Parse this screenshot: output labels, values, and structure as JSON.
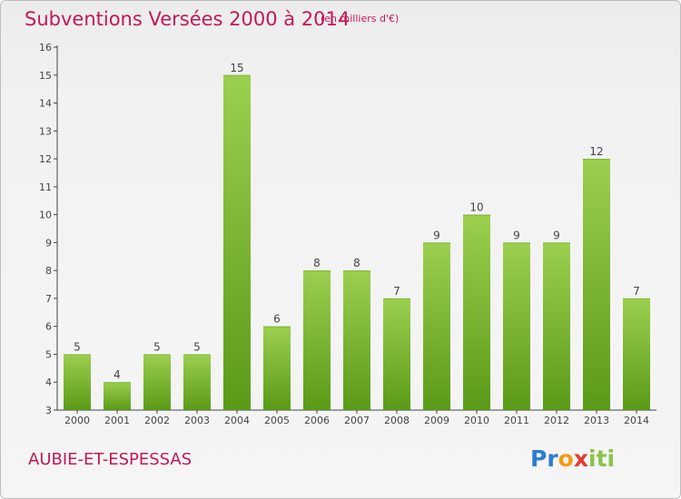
{
  "header": {
    "title": "Subventions Versées 2000 à 2014",
    "unit": "(en milliers d'€)"
  },
  "footer": {
    "commune": "AUBIE-ET-ESPESSAS",
    "logo_letters": [
      "P",
      "r",
      "o",
      "x",
      "i",
      "t",
      "i"
    ],
    "logo_colors": [
      "#2e7dd1",
      "#2e7dd1",
      "#f39c12",
      "#e53935",
      "#8bc34a",
      "#8bc34a",
      "#8bc34a"
    ]
  },
  "colors": {
    "title": "#c2185b",
    "bar_light": "#9ccf4f",
    "bar_dark": "#5a9a17",
    "axis": "#444444"
  },
  "chart_data": {
    "type": "bar",
    "categories": [
      "2000",
      "2001",
      "2002",
      "2003",
      "2004",
      "2005",
      "2006",
      "2007",
      "2008",
      "2009",
      "2010",
      "2011",
      "2012",
      "2013",
      "2014"
    ],
    "values": [
      5,
      4,
      5,
      5,
      15,
      6,
      8,
      8,
      7,
      9,
      10,
      9,
      9,
      12,
      7
    ],
    "title": "Subventions Versées 2000 à 2014",
    "subtitle": "(en milliers d'€)",
    "xlabel": "",
    "ylabel": "",
    "ylim": [
      3,
      16
    ],
    "yticks": [
      3,
      4,
      5,
      6,
      7,
      8,
      9,
      10,
      11,
      12,
      13,
      14,
      15,
      16
    ],
    "data_labels": true,
    "grid": false,
    "legend": "none"
  }
}
